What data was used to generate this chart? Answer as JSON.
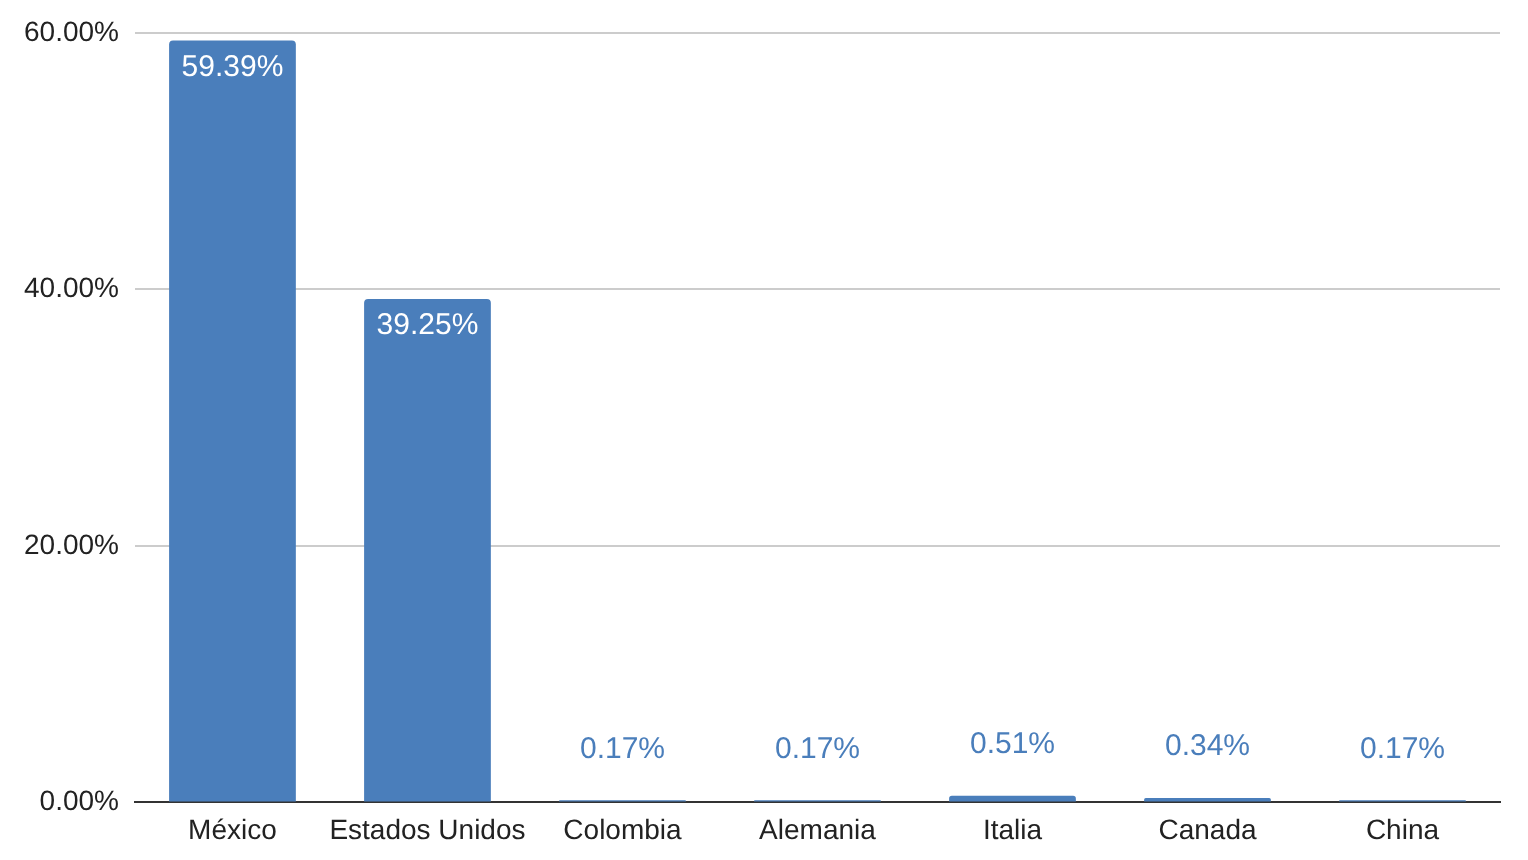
{
  "chart_data": {
    "type": "bar",
    "categories": [
      "México",
      "Estados Unidos",
      "Colombia",
      "Alemania",
      "Italia",
      "Canada",
      "China"
    ],
    "values": [
      59.39,
      39.25,
      0.17,
      0.17,
      0.51,
      0.34,
      0.17
    ],
    "value_labels": [
      "59.39%",
      "39.25%",
      "0.17%",
      "0.17%",
      "0.51%",
      "0.34%",
      "0.17%"
    ],
    "color": "#4a7ebb",
    "ylim": [
      0,
      60
    ],
    "yticks": [
      {
        "value": 0,
        "label": "0.00%"
      },
      {
        "value": 20,
        "label": "20.00%"
      },
      {
        "value": 40,
        "label": "40.00%"
      },
      {
        "value": 60,
        "label": "60.00%"
      }
    ],
    "grid": "y",
    "legend": false
  }
}
